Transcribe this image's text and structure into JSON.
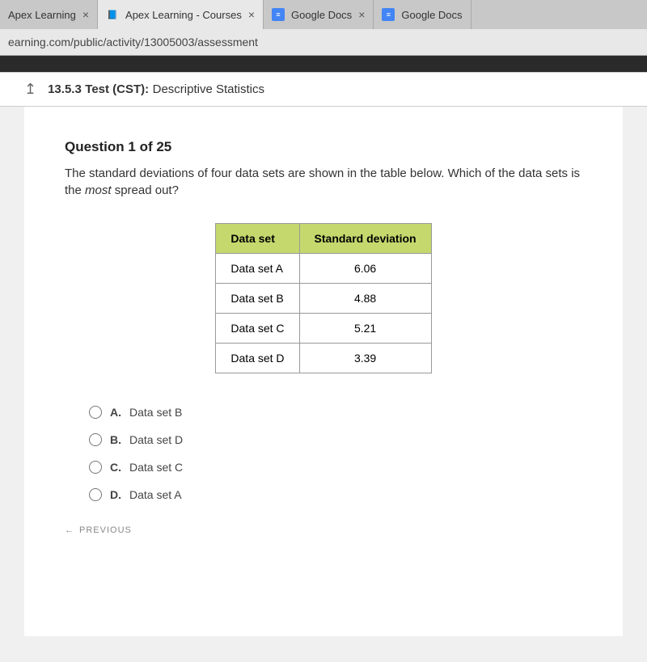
{
  "tabs": [
    {
      "label": "Apex Learning",
      "active": false,
      "icon": ""
    },
    {
      "label": "Apex Learning - Courses",
      "active": true,
      "icon": "📘"
    },
    {
      "label": "Google Docs",
      "active": false,
      "icon": "gdocs"
    },
    {
      "label": "Google Docs",
      "active": false,
      "icon": "gdocs"
    }
  ],
  "url": "earning.com/public/activity/13005003/assessment",
  "test_header": {
    "number": "13.5.3",
    "type_label": "Test (CST):",
    "title": "Descriptive Statistics"
  },
  "question": {
    "heading": "Question 1 of 25",
    "text_before": "The standard deviations of four data sets are shown in the table below. Which of the data sets is the ",
    "text_em": "most",
    "text_after": " spread out?"
  },
  "table": {
    "header_bg": "#c5d86d",
    "border_color": "#999999",
    "columns": [
      "Data set",
      "Standard deviation"
    ],
    "rows": [
      [
        "Data set A",
        "6.06"
      ],
      [
        "Data set B",
        "4.88"
      ],
      [
        "Data set C",
        "5.21"
      ],
      [
        "Data set D",
        "3.39"
      ]
    ]
  },
  "options": [
    {
      "letter": "A.",
      "text": "Data set B"
    },
    {
      "letter": "B.",
      "text": "Data set D"
    },
    {
      "letter": "C.",
      "text": "Data set C"
    },
    {
      "letter": "D.",
      "text": "Data set A"
    }
  ],
  "nav": {
    "previous": "PREVIOUS"
  }
}
